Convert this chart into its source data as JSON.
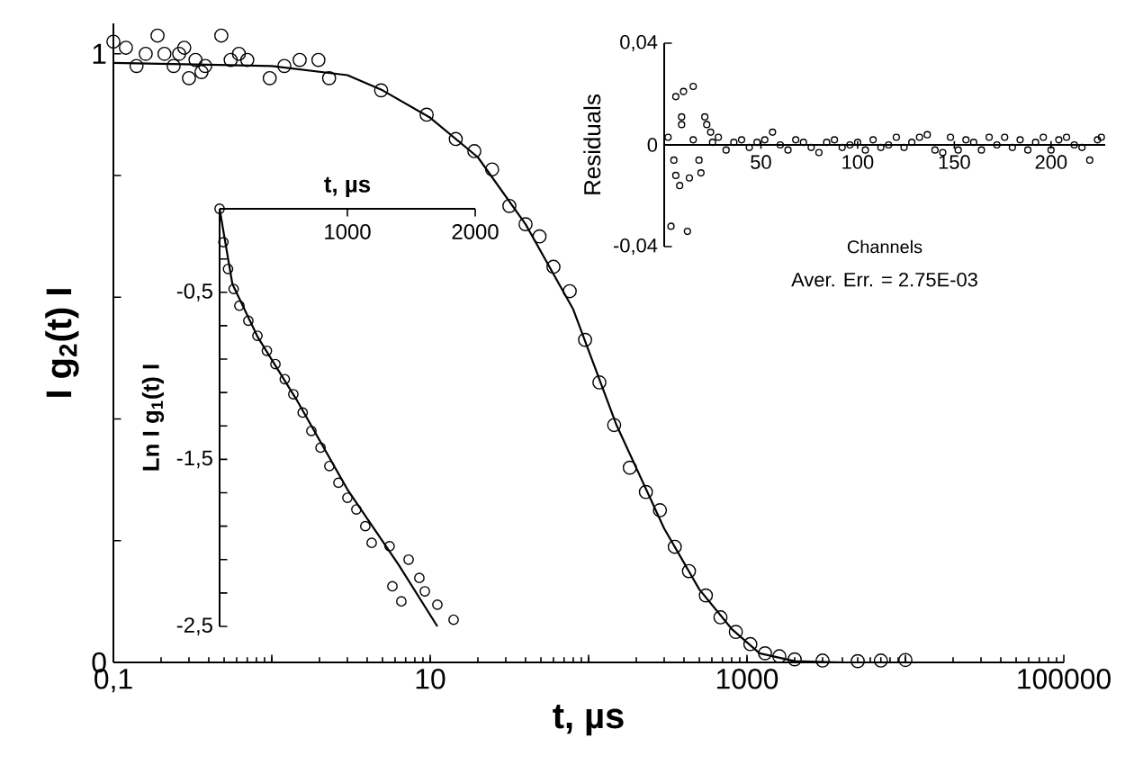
{
  "chart_data": [
    {
      "type": "scatter",
      "xlabel": "t, µs",
      "ylabel": "I g$_{2}$(t) I",
      "log": "x",
      "xlim": [
        0.1,
        100000
      ],
      "ylim": [
        0,
        1.05
      ],
      "xticks": [
        {
          "value": 0.1,
          "label": "0,1"
        },
        {
          "value": 1,
          "label": null
        },
        10,
        {
          "value": 100,
          "label": null
        },
        1000,
        {
          "value": 10000,
          "label": null
        },
        100000
      ],
      "yticks": [
        0,
        {
          "value": 0.2,
          "label": null
        },
        {
          "value": 0.4,
          "label": null
        },
        {
          "value": 0.6,
          "label": null
        },
        {
          "value": 0.8,
          "label": null
        },
        1
      ],
      "series": [
        {
          "marker": "circle",
          "color": "#000000",
          "x": [
            0.1,
            0.12,
            0.14,
            0.16,
            0.19,
            0.21,
            0.24,
            0.26,
            0.28,
            0.3,
            0.33,
            0.36,
            0.38,
            0.48,
            0.55,
            0.62,
            0.7,
            0.97,
            1.2,
            1.5,
            1.97,
            2.3,
            4.9,
            9.5,
            14.5,
            19,
            24.6,
            31.6,
            40,
            49,
            60,
            76,
            95,
            117,
            145,
            182,
            230,
            282,
            350,
            430,
            550,
            680,
            850,
            1050,
            1300,
            1600,
            2000,
            3000,
            5000,
            7000,
            10000
          ],
          "values": [
            1.02,
            1.01,
            0.98,
            1.0,
            1.03,
            1.0,
            0.98,
            1.0,
            1.01,
            0.96,
            0.99,
            0.97,
            0.98,
            1.03,
            0.99,
            1.0,
            0.99,
            0.96,
            0.98,
            0.99,
            0.99,
            0.96,
            0.94,
            0.9,
            0.86,
            0.84,
            0.81,
            0.75,
            0.72,
            0.7,
            0.65,
            0.61,
            0.53,
            0.46,
            0.39,
            0.32,
            0.28,
            0.25,
            0.19,
            0.15,
            0.11,
            0.074,
            0.05,
            0.03,
            0.015,
            0.01,
            0.005,
            0.003,
            0.002,
            0.003,
            0.004
          ]
        },
        {
          "type": "line",
          "color": "#000000",
          "x": [
            0.1,
            1,
            3,
            5,
            10,
            20,
            40,
            80,
            150,
            300,
            500,
            800,
            1200,
            2000,
            4000,
            10000
          ],
          "values": [
            0.985,
            0.98,
            0.965,
            0.94,
            0.895,
            0.83,
            0.72,
            0.58,
            0.39,
            0.22,
            0.12,
            0.055,
            0.015,
            0.002,
            0,
            0
          ]
        }
      ]
    },
    {
      "type": "scatter",
      "xlabel": "t, µs",
      "ylabel": "Ln I g$_{1}$(t) I",
      "xlim": [
        0,
        2000
      ],
      "ylim": [
        -2.5,
        0
      ],
      "xticks": [
        {
          "value": 0,
          "label": null
        },
        1000,
        2000
      ],
      "yticks": [
        {
          "value": -0.3,
          "label": null
        },
        {
          "value": -0.5,
          "label": "-0,5"
        },
        {
          "value": -0.7,
          "label": null
        },
        {
          "value": -0.9,
          "label": null
        },
        {
          "value": -1.1,
          "label": null
        },
        {
          "value": -1.3,
          "label": null
        },
        {
          "value": -1.5,
          "label": "-1,5"
        },
        {
          "value": -1.7,
          "label": null
        },
        {
          "value": -1.9,
          "label": null
        },
        {
          "value": -2.1,
          "label": null
        },
        {
          "value": -2.3,
          "label": null
        },
        {
          "value": -2.5,
          "label": "-2,5"
        }
      ],
      "series": [
        {
          "marker": "circle",
          "color": "#000000",
          "x": [
            0,
            30,
            66,
            110,
            155,
            225,
            296,
            370,
            437,
            510,
            577,
            650,
            718,
            790,
            859,
            930,
            1000,
            1070,
            1140,
            1190,
            1330,
            1352,
            1422,
            1479,
            1563,
            1606,
            1704,
            1831
          ],
          "values": [
            0,
            -0.2,
            -0.36,
            -0.48,
            -0.58,
            -0.67,
            -0.76,
            -0.85,
            -0.93,
            -1.02,
            -1.11,
            -1.22,
            -1.33,
            -1.43,
            -1.54,
            -1.64,
            -1.73,
            -1.8,
            -1.9,
            -2.0,
            -2.02,
            -2.26,
            -2.35,
            -2.1,
            -2.21,
            -2.29,
            -2.37,
            -2.46
          ]
        },
        {
          "type": "line",
          "color": "#000000",
          "x": [
            0,
            100,
            300,
            600,
            1000,
            1400,
            1704
          ],
          "values": [
            0,
            -0.45,
            -0.77,
            -1.14,
            -1.68,
            -2.13,
            -2.5
          ]
        }
      ]
    },
    {
      "type": "scatter",
      "xlabel": "Channels",
      "ylabel": "Residuals",
      "xlim": [
        0,
        228
      ],
      "ylim": [
        -0.04,
        0.04
      ],
      "xticks": [
        {
          "value": 0,
          "label": null
        },
        50,
        100,
        150,
        200
      ],
      "yticks": [
        {
          "value": -0.04,
          "label": "-0,04"
        },
        0,
        {
          "value": 0.04,
          "label": "0,04"
        }
      ],
      "annotations": [
        "Aver. Err. = 2.75E-03"
      ],
      "series": [
        {
          "marker": "circle",
          "color": "#000000",
          "x": [
            2,
            3.5,
            5,
            6,
            6,
            8,
            9,
            9,
            10,
            12,
            13,
            15,
            15,
            18,
            19,
            21,
            22,
            24,
            25,
            28,
            32,
            36,
            40,
            44,
            48,
            52,
            56,
            60,
            64,
            68,
            72,
            76,
            80,
            84,
            88,
            92,
            96,
            100,
            104,
            108,
            112,
            116,
            120,
            124,
            128,
            132,
            136,
            140,
            144,
            148,
            152,
            156,
            160,
            164,
            168,
            172,
            176,
            180,
            184,
            188,
            192,
            196,
            200,
            204,
            208,
            212,
            216,
            220,
            224,
            226
          ],
          "values": [
            0.003,
            -0.032,
            -0.006,
            -0.012,
            0.019,
            -0.016,
            0.011,
            0.008,
            0.021,
            -0.034,
            -0.013,
            0.023,
            0.002,
            -0.006,
            -0.011,
            0.011,
            0.008,
            0.005,
            0.001,
            0.003,
            -0.002,
            0.001,
            0.002,
            -0.001,
            0.001,
            0.002,
            0.005,
            0.0,
            -0.002,
            0.002,
            0.001,
            -0.001,
            -0.003,
            0.001,
            0.002,
            -0.001,
            0.0,
            0.001,
            -0.002,
            0.002,
            -0.001,
            0.0,
            0.003,
            -0.001,
            0.001,
            0.003,
            0.004,
            -0.002,
            -0.003,
            0.003,
            -0.002,
            0.002,
            0.001,
            -0.002,
            0.003,
            0.0,
            0.003,
            -0.001,
            0.002,
            -0.002,
            0.001,
            0.003,
            -0.002,
            0.002,
            0.003,
            0.0,
            -0.001,
            -0.006,
            0.002,
            0.003
          ]
        }
      ]
    }
  ]
}
